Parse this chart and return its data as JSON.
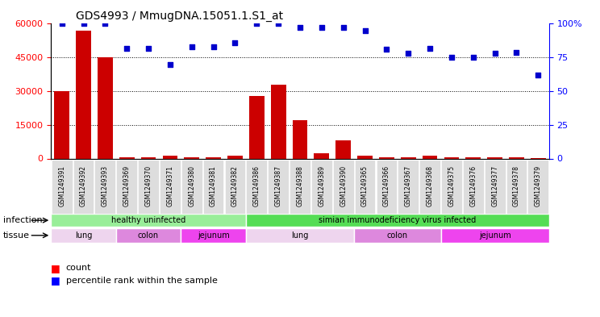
{
  "title": "GDS4993 / MmugDNA.15051.1.S1_at",
  "samples": [
    "GSM1249391",
    "GSM1249392",
    "GSM1249393",
    "GSM1249369",
    "GSM1249370",
    "GSM1249371",
    "GSM1249380",
    "GSM1249381",
    "GSM1249382",
    "GSM1249386",
    "GSM1249387",
    "GSM1249388",
    "GSM1249389",
    "GSM1249390",
    "GSM1249365",
    "GSM1249366",
    "GSM1249367",
    "GSM1249368",
    "GSM1249375",
    "GSM1249376",
    "GSM1249377",
    "GSM1249378",
    "GSM1249379"
  ],
  "counts": [
    30000,
    57000,
    45000,
    500,
    600,
    1100,
    600,
    700,
    1200,
    28000,
    33000,
    17000,
    2200,
    8000,
    1100,
    700,
    400,
    1100,
    400,
    400,
    400,
    700,
    300
  ],
  "percentiles": [
    100,
    100,
    100,
    82,
    82,
    70,
    83,
    83,
    86,
    100,
    100,
    97,
    97,
    97,
    95,
    81,
    78,
    82,
    75,
    75,
    78,
    79,
    62
  ],
  "bar_color": "#CC0000",
  "dot_color": "#0000CC",
  "ylim_left": [
    0,
    60000
  ],
  "ylim_right": [
    0,
    100
  ],
  "yticks_left": [
    0,
    15000,
    30000,
    45000,
    60000
  ],
  "yticks_right": [
    0,
    25,
    50,
    75,
    100
  ],
  "inf_regions": [
    {
      "label": "healthy uninfected",
      "start": 0,
      "end": 9,
      "color": "#99EE99"
    },
    {
      "label": "simian immunodeficiency virus infected",
      "start": 9,
      "end": 23,
      "color": "#55DD55"
    }
  ],
  "tis_regions": [
    {
      "label": "lung",
      "start": 0,
      "end": 3,
      "color": "#EED5EE"
    },
    {
      "label": "colon",
      "start": 3,
      "end": 6,
      "color": "#DD88DD"
    },
    {
      "label": "jejunum",
      "start": 6,
      "end": 9,
      "color": "#EE44EE"
    },
    {
      "label": "lung",
      "start": 9,
      "end": 14,
      "color": "#EED5EE"
    },
    {
      "label": "colon",
      "start": 14,
      "end": 18,
      "color": "#DD88DD"
    },
    {
      "label": "jejunum",
      "start": 18,
      "end": 23,
      "color": "#EE44EE"
    }
  ],
  "legend_count_label": "count",
  "legend_pct_label": "percentile rank within the sample",
  "infection_label": "infection",
  "tissue_label": "tissue",
  "xlabel_bg": "#DDDDDD"
}
